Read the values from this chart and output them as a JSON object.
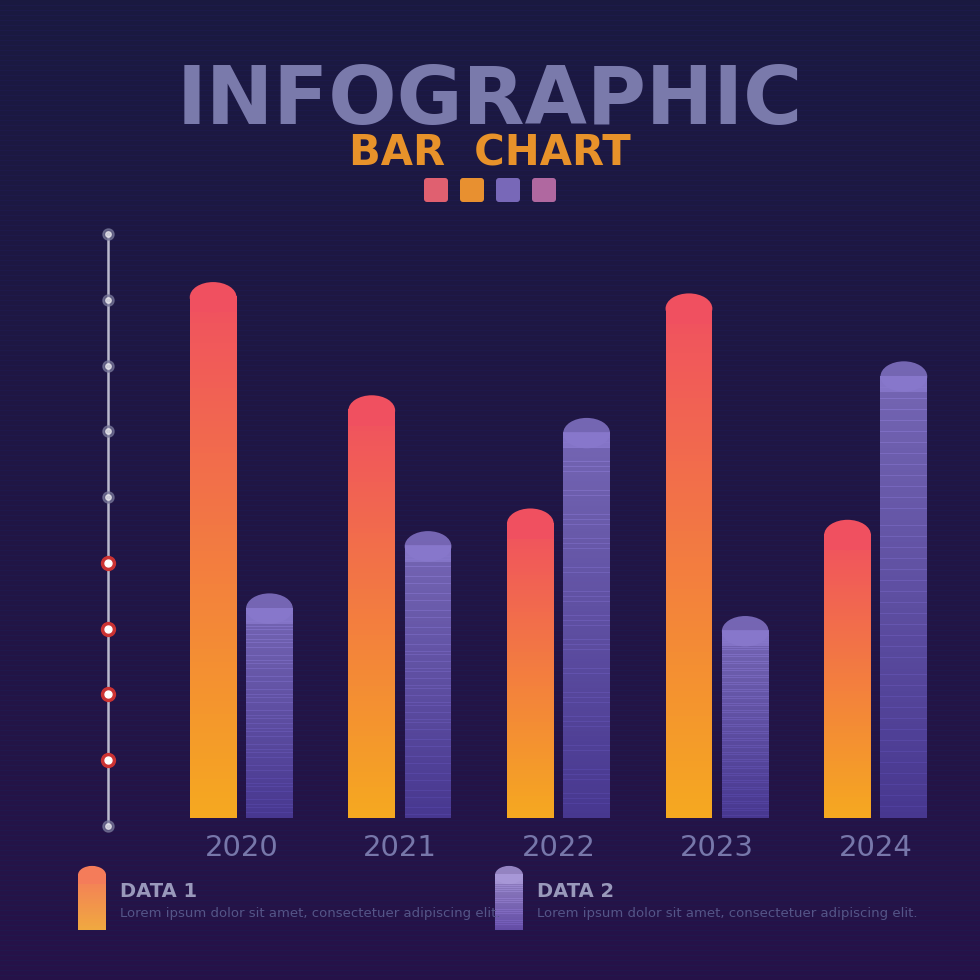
{
  "title_line1": "INFOGRAPHIC",
  "title_line2": "BAR  CHART",
  "bg_color": "#1a1940",
  "stripe_color": "#201d58",
  "title_color1": "#8888bb",
  "title_color2": "#e8922a",
  "years": [
    "2020",
    "2021",
    "2022",
    "2023",
    "2024"
  ],
  "data1_values": [
    0.92,
    0.72,
    0.52,
    0.9,
    0.5
  ],
  "data2_values": [
    0.37,
    0.48,
    0.68,
    0.33,
    0.78
  ],
  "data1_label": "DATA 1",
  "data1_sub": "Lorem ipsum dolor sit amet, consectetuer adipiscing elit.",
  "data2_label": "DATA 2",
  "data2_sub": "Lorem ipsum dolor sit amet, consectetuer adipiscing elit.",
  "bar1_top": "#f05060",
  "bar1_bot": "#f5a820",
  "bar2_top": "#8878cc",
  "bar2_bot": "#5040a0",
  "dot_active": "#e04040",
  "dot_inactive": "#888899",
  "line_color": "#ccccdd",
  "year_color": "#7777aa",
  "label_color": "#9999bb",
  "sub_color": "#555588",
  "sq_colors": [
    "#e06070",
    "#e89030",
    "#7868b8",
    "#b068a0"
  ],
  "legend1_top": "#f47c5a",
  "legend1_bot": "#f0a840",
  "legend2_top": "#a898d8",
  "legend2_bot": "#7058b8"
}
